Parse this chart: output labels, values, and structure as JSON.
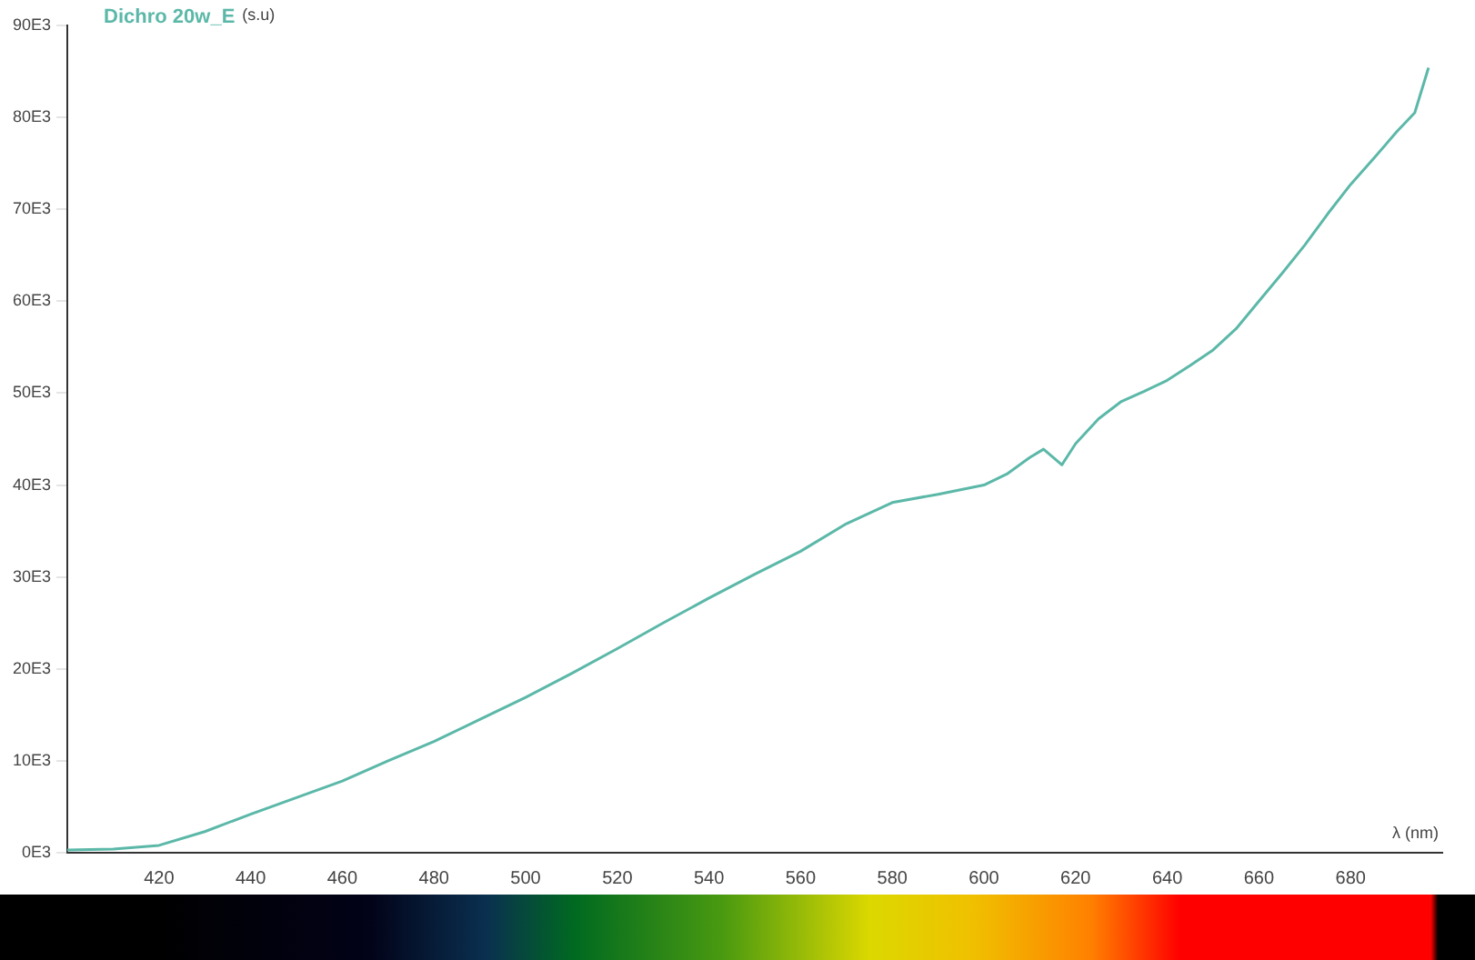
{
  "chart_data": {
    "type": "line",
    "xlabel": "λ (nm)",
    "ylabel": "(s.u)",
    "xlim": [
      400,
      700
    ],
    "xticks": [
      420,
      440,
      460,
      480,
      500,
      520,
      540,
      560,
      580,
      600,
      620,
      640,
      660,
      680
    ],
    "ylim": [
      0,
      90000
    ],
    "yticks": [
      {
        "value": 0,
        "label": "0E3"
      },
      {
        "value": 10000,
        "label": "10E3"
      },
      {
        "value": 20000,
        "label": "20E3"
      },
      {
        "value": 30000,
        "label": "30E3"
      },
      {
        "value": 40000,
        "label": "40E3"
      },
      {
        "value": 50000,
        "label": "50E3"
      },
      {
        "value": 60000,
        "label": "60E3"
      },
      {
        "value": 70000,
        "label": "70E3"
      },
      {
        "value": 80000,
        "label": "80E3"
      },
      {
        "value": 90000,
        "label": "90E3"
      }
    ],
    "grid": false,
    "legend": false,
    "marker": "none",
    "line_style": "solid",
    "x": [
      400,
      410,
      420,
      430,
      440,
      450,
      460,
      470,
      480,
      490,
      500,
      510,
      520,
      530,
      540,
      550,
      560,
      570,
      580,
      590,
      600,
      605,
      610,
      613,
      617,
      620,
      625,
      630,
      635,
      640,
      645,
      650,
      655,
      660,
      665,
      670,
      675,
      680,
      685,
      690,
      694,
      697
    ],
    "series": [
      {
        "name": "Dichro 20w_E",
        "color": "#5bb8a8",
        "values": [
          300,
          400,
          800,
          2300,
          4200,
          6000,
          7800,
          10000,
          12100,
          14500,
          16900,
          19500,
          22200,
          25000,
          27700,
          30300,
          32800,
          35800,
          38100,
          39000,
          40000,
          41200,
          43000,
          43900,
          42200,
          44500,
          47200,
          49100,
          50200,
          51400,
          53000,
          54700,
          57000,
          60000,
          63000,
          66100,
          69500,
          72700,
          75500,
          78400,
          80500,
          85400
        ]
      }
    ]
  }
}
